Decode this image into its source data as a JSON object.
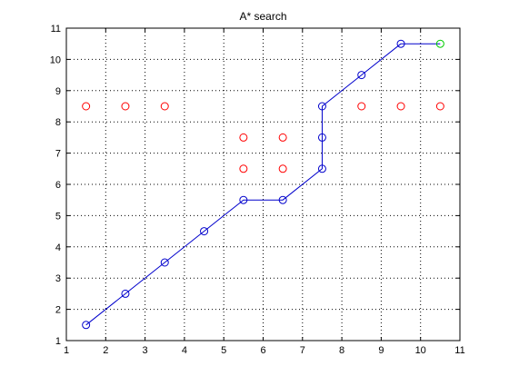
{
  "chart_data": {
    "type": "scatter",
    "title": "A* search",
    "xlabel": "",
    "ylabel": "",
    "xlim": [
      1,
      11
    ],
    "ylim": [
      1,
      11
    ],
    "xticks": [
      1,
      2,
      3,
      4,
      5,
      6,
      7,
      8,
      9,
      10,
      11
    ],
    "yticks": [
      1,
      2,
      3,
      4,
      5,
      6,
      7,
      8,
      9,
      10,
      11
    ],
    "grid": "dotted",
    "series": [
      {
        "kind": "line-markers",
        "color": "#0000cc",
        "marker": "circle",
        "points": [
          [
            1.5,
            1.5
          ],
          [
            2.5,
            2.5
          ],
          [
            3.5,
            3.5
          ],
          [
            4.5,
            4.5
          ],
          [
            5.5,
            5.5
          ],
          [
            6.5,
            5.5
          ],
          [
            7.5,
            6.5
          ],
          [
            7.5,
            7.5
          ],
          [
            7.5,
            8.5
          ],
          [
            8.5,
            9.5
          ],
          [
            9.5,
            10.5
          ]
        ]
      },
      {
        "kind": "line",
        "color": "#0000cc",
        "points": [
          [
            9.5,
            10.5
          ],
          [
            10.5,
            10.5
          ]
        ]
      },
      {
        "kind": "markers",
        "color": "#ff0000",
        "marker": "circle",
        "points": [
          [
            1.5,
            8.5
          ],
          [
            2.5,
            8.5
          ],
          [
            3.5,
            8.5
          ],
          [
            5.5,
            7.5
          ],
          [
            6.5,
            7.5
          ],
          [
            5.5,
            6.5
          ],
          [
            6.5,
            6.5
          ],
          [
            8.5,
            8.5
          ],
          [
            9.5,
            8.5
          ],
          [
            10.5,
            8.5
          ]
        ]
      },
      {
        "kind": "markers",
        "color": "#00cc00",
        "marker": "circle",
        "points": [
          [
            10.5,
            10.5
          ]
        ]
      }
    ]
  }
}
